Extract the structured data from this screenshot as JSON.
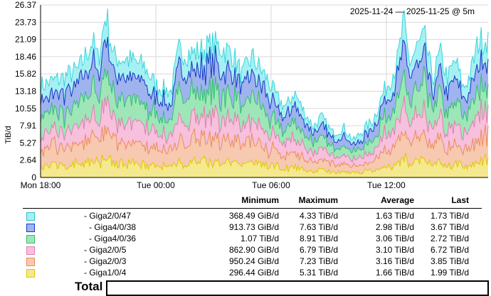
{
  "chart_data": {
    "type": "area",
    "stacked": true,
    "ylabel": "TiB/d",
    "range_text": "2025-11-24 — 2025-11-25 @ 5m",
    "y_ticks": [
      "0",
      "2.64",
      "5.27",
      "7.91",
      "10.55",
      "13.18",
      "15.82",
      "18.46",
      "21.09",
      "23.73",
      "26.37"
    ],
    "y_tick_values": [
      0,
      2.64,
      5.27,
      7.91,
      10.55,
      13.18,
      15.82,
      18.46,
      21.09,
      23.73,
      26.37
    ],
    "ylim": [
      0,
      26.37
    ],
    "x_ticks": [
      "Mon 18:00",
      "Tue 00:00",
      "Tue 06:00",
      "Tue 12:00"
    ],
    "x_tick_hours": [
      0,
      6,
      12,
      18
    ],
    "x_range_hours": [
      0,
      23.3
    ],
    "grid": true,
    "series_colors": [
      {
        "fill": "#f4e98e",
        "line": "#e2c800"
      },
      {
        "fill": "#f6c9b0",
        "line": "#ec8c5c"
      },
      {
        "fill": "#f7c0dc",
        "line": "#e07fb0"
      },
      {
        "fill": "#9ee6b8",
        "line": "#33c16e"
      },
      {
        "fill": "#9fb4ee",
        "line": "#1838c8"
      },
      {
        "fill": "#a6f0f3",
        "line": "#36d6dc"
      }
    ],
    "stack_order": [
      "Giga1/0/4",
      "Giga2/0/3",
      "Giga2/0/5",
      "Giga4/0/36",
      "Giga4/0/38",
      "Giga2/0/47"
    ],
    "cumulative_top_points": [
      [
        0.0,
        14.5
      ],
      [
        1.0,
        15.5
      ],
      [
        2.0,
        17.0
      ],
      [
        2.7,
        21.5
      ],
      [
        3.0,
        18.5
      ],
      [
        3.4,
        26.0
      ],
      [
        3.8,
        19.0
      ],
      [
        4.6,
        18.5
      ],
      [
        5.4,
        17.5
      ],
      [
        6.0,
        14.5
      ],
      [
        6.8,
        13.5
      ],
      [
        7.2,
        20.0
      ],
      [
        8.0,
        19.5
      ],
      [
        9.0,
        21.0
      ],
      [
        10.0,
        19.5
      ],
      [
        10.5,
        16.0
      ],
      [
        11.0,
        19.0
      ],
      [
        11.8,
        15.5
      ],
      [
        12.3,
        12.5
      ],
      [
        12.8,
        11.0
      ],
      [
        13.2,
        13.5
      ],
      [
        13.6,
        11.0
      ],
      [
        14.2,
        8.0
      ],
      [
        14.6,
        9.5
      ],
      [
        15.2,
        7.0
      ],
      [
        15.8,
        7.8
      ],
      [
        16.3,
        5.8
      ],
      [
        16.8,
        7.5
      ],
      [
        17.3,
        9.0
      ],
      [
        17.8,
        13.0
      ],
      [
        18.2,
        15.5
      ],
      [
        18.6,
        18.5
      ],
      [
        18.9,
        24.5
      ],
      [
        19.2,
        18.0
      ],
      [
        19.6,
        20.5
      ],
      [
        20.0,
        22.0
      ],
      [
        20.4,
        15.5
      ],
      [
        20.8,
        19.5
      ],
      [
        21.2,
        15.5
      ],
      [
        21.6,
        18.5
      ],
      [
        22.0,
        14.0
      ],
      [
        22.4,
        16.5
      ],
      [
        22.8,
        21.5
      ],
      [
        23.3,
        22.0
      ]
    ]
  },
  "legend": {
    "headers": {
      "min": "Minimum",
      "max": "Maximum",
      "avg": "Average",
      "last": "Last"
    },
    "rows": [
      {
        "label": "- Giga2/0/47",
        "min": "368.49 GiB/d",
        "max": "4.33 TiB/d",
        "avg": "1.63 TiB/d",
        "last": "1.73 TiB/d",
        "swatch_fill": "#a6f0f3",
        "swatch_border": "#2fc2c8"
      },
      {
        "label": "- Giga4/0/38",
        "min": "913.73 GiB/d",
        "max": "7.63 TiB/d",
        "avg": "2.98 TiB/d",
        "last": "3.67 TiB/d",
        "swatch_fill": "#9fb4ee",
        "swatch_border": "#1838c8"
      },
      {
        "label": "- Giga4/0/36",
        "min": "1.07 TiB/d",
        "max": "8.91 TiB/d",
        "avg": "3.06 TiB/d",
        "last": "2.72 TiB/d",
        "swatch_fill": "#9ee6b8",
        "swatch_border": "#33c16e"
      },
      {
        "label": "- Giga2/0/5",
        "min": "862.90 GiB/d",
        "max": "6.79 TiB/d",
        "avg": "3.10 TiB/d",
        "last": "6.72 TiB/d",
        "swatch_fill": "#f7c0dc",
        "swatch_border": "#e07fb0"
      },
      {
        "label": "- Giga2/0/3",
        "min": "950.24 GiB/d",
        "max": "7.23 TiB/d",
        "avg": "3.16 TiB/d",
        "last": "3.85 TiB/d",
        "swatch_fill": "#f6c9b0",
        "swatch_border": "#ec8c5c"
      },
      {
        "label": "- Giga1/0/4",
        "min": "296.44 GiB/d",
        "max": "5.31 TiB/d",
        "avg": "1.66 TiB/d",
        "last": "1.99 TiB/d",
        "swatch_fill": "#f4e98e",
        "swatch_border": "#e2c800"
      }
    ]
  },
  "total": {
    "label": "Total"
  }
}
